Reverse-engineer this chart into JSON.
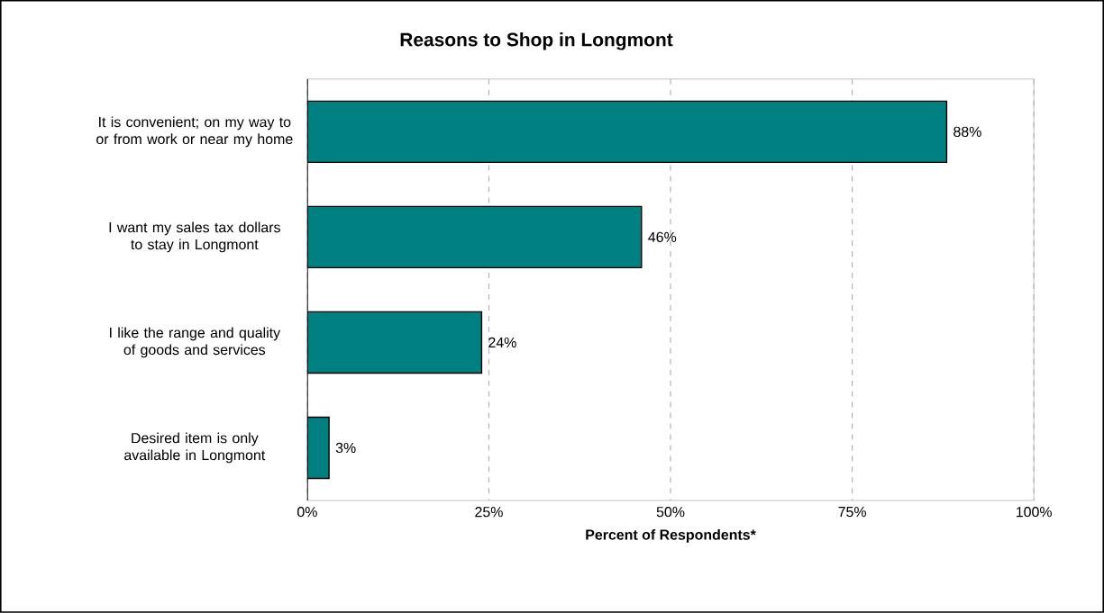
{
  "chart_data": {
    "type": "bar",
    "orientation": "horizontal",
    "title": "Reasons to Shop in Longmont",
    "xlabel": "Percent of Respondents*",
    "categories": [
      "It is convenient; on my way to or from work or near my home",
      "I want my sales tax dollars to stay in Longmont",
      "I like the range and quality of goods and services",
      "Desired item is only available in Longmont"
    ],
    "values": [
      88,
      46,
      24,
      3
    ],
    "value_labels": [
      "88%",
      "46%",
      "24%",
      "3%"
    ],
    "color": "#008080",
    "xlim": [
      0,
      100
    ],
    "xticks": [
      {
        "value": 0,
        "label": "0%"
      },
      {
        "value": 25,
        "label": "25%"
      },
      {
        "value": 50,
        "label": "50%"
      },
      {
        "value": 75,
        "label": "75%"
      },
      {
        "value": 100,
        "label": "100%"
      }
    ],
    "grid": "x"
  }
}
